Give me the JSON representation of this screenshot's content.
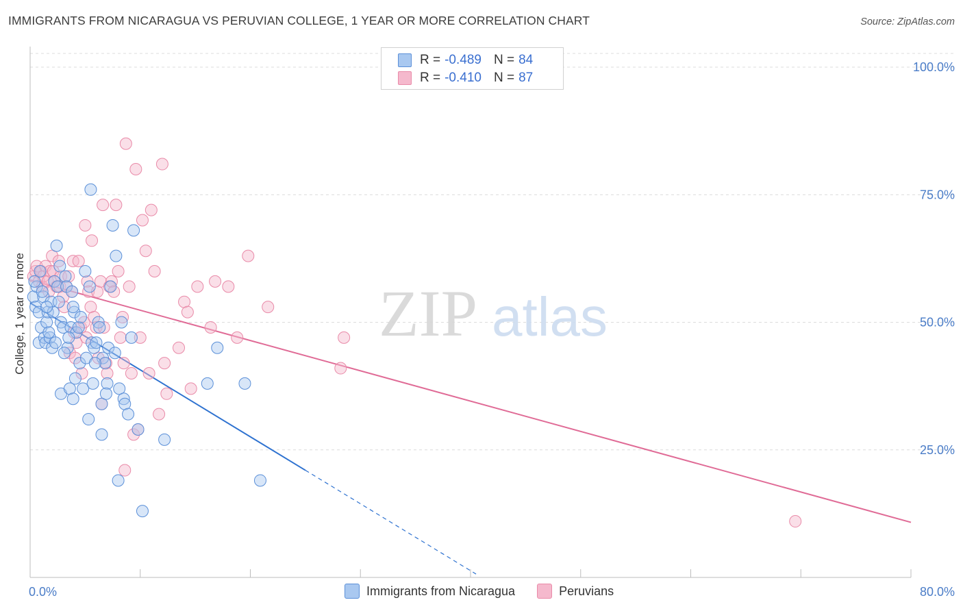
{
  "title": "IMMIGRANTS FROM NICARAGUA VS PERUVIAN COLLEGE, 1 YEAR OR MORE CORRELATION CHART",
  "source": "Source: ZipAtlas.com",
  "watermark": {
    "zip": "ZIP",
    "atlas": "atlas"
  },
  "legend": {
    "r_label": "R =",
    "n_label": "N =",
    "series": [
      {
        "r": "-0.489",
        "n": "84"
      },
      {
        "r": "-0.410",
        "n": "87"
      }
    ]
  },
  "bottom_legend": [
    "Immigrants from Nicaragua",
    "Peruvians"
  ],
  "colors": {
    "blue_fill": "#a9c8f0",
    "blue_stroke": "#5a8fd8",
    "blue_line": "#2e72d0",
    "pink_fill": "#f5b9cd",
    "pink_stroke": "#e98aa8",
    "pink_line": "#e06b96",
    "grid": "#dcdcdc",
    "tick_text": "#4a7cc7"
  },
  "chart_data": {
    "type": "scatter",
    "title": "IMMIGRANTS FROM NICARAGUA VS PERUVIAN COLLEGE, 1 YEAR OR MORE CORRELATION CHART",
    "xlabel": "",
    "ylabel": "College, 1 year or more",
    "xlim": [
      0,
      80
    ],
    "ylim": [
      0,
      105
    ],
    "x_tick_labels": [
      "0.0%",
      "80.0%"
    ],
    "y_ticks": [
      25,
      50,
      75,
      100
    ],
    "y_tick_labels": [
      "25.0%",
      "50.0%",
      "75.0%",
      "100.0%"
    ],
    "series": [
      {
        "name": "Immigrants from Nicaragua",
        "r": -0.489,
        "n": 84,
        "trend": {
          "x0": 0,
          "y0": 53.8,
          "x1": 25,
          "y1": 21.0,
          "dashed_to_x": 40.5
        },
        "points": [
          [
            0.3,
            55
          ],
          [
            0.5,
            53
          ],
          [
            0.6,
            57
          ],
          [
            0.8,
            52
          ],
          [
            0.8,
            46
          ],
          [
            1.0,
            49
          ],
          [
            1.2,
            55
          ],
          [
            1.3,
            47
          ],
          [
            1.4,
            46
          ],
          [
            1.5,
            50
          ],
          [
            1.6,
            52
          ],
          [
            1.8,
            47
          ],
          [
            1.9,
            54
          ],
          [
            2.0,
            45
          ],
          [
            2.2,
            58
          ],
          [
            2.4,
            65
          ],
          [
            2.5,
            57
          ],
          [
            2.6,
            54
          ],
          [
            2.8,
            50
          ],
          [
            2.8,
            36
          ],
          [
            3.0,
            49
          ],
          [
            3.2,
            59
          ],
          [
            3.3,
            57
          ],
          [
            3.4,
            45
          ],
          [
            3.6,
            37
          ],
          [
            3.7,
            49
          ],
          [
            3.8,
            56
          ],
          [
            3.9,
            35
          ],
          [
            4.0,
            52
          ],
          [
            4.2,
            48
          ],
          [
            4.4,
            49
          ],
          [
            4.5,
            42
          ],
          [
            4.8,
            37
          ],
          [
            5.0,
            60
          ],
          [
            5.1,
            43
          ],
          [
            5.3,
            31
          ],
          [
            5.4,
            57
          ],
          [
            5.5,
            76
          ],
          [
            5.6,
            46
          ],
          [
            5.7,
            38
          ],
          [
            5.8,
            45
          ],
          [
            6.0,
            46
          ],
          [
            6.2,
            50
          ],
          [
            6.3,
            49
          ],
          [
            6.5,
            34
          ],
          [
            6.5,
            28
          ],
          [
            6.6,
            43
          ],
          [
            6.8,
            42
          ],
          [
            7.0,
            38
          ],
          [
            7.1,
            45
          ],
          [
            7.3,
            57
          ],
          [
            7.5,
            69
          ],
          [
            7.8,
            63
          ],
          [
            8.1,
            37
          ],
          [
            8.3,
            50
          ],
          [
            8.5,
            35
          ],
          [
            8.6,
            34
          ],
          [
            8.9,
            32
          ],
          [
            9.2,
            47
          ],
          [
            9.4,
            68
          ],
          [
            9.8,
            29
          ],
          [
            10.2,
            13
          ],
          [
            12.2,
            27
          ],
          [
            16.1,
            38
          ],
          [
            17.0,
            45
          ],
          [
            19.5,
            38
          ],
          [
            20.9,
            19
          ],
          [
            8.0,
            19
          ],
          [
            1.1,
            56
          ],
          [
            2.1,
            52
          ],
          [
            3.5,
            47
          ],
          [
            4.6,
            51
          ],
          [
            5.9,
            42
          ],
          [
            7.7,
            44
          ],
          [
            0.9,
            60
          ],
          [
            2.7,
            61
          ],
          [
            1.7,
            48
          ],
          [
            3.1,
            44
          ],
          [
            4.1,
            39
          ],
          [
            6.9,
            36
          ],
          [
            0.4,
            58
          ],
          [
            1.5,
            53
          ],
          [
            2.3,
            46
          ],
          [
            3.9,
            53
          ]
        ]
      },
      {
        "name": "Peruvians",
        "r": -0.41,
        "n": 87,
        "trend": {
          "x0": 0,
          "y0": 58.3,
          "x1": 80,
          "y1": 10.8
        },
        "points": [
          [
            0.3,
            59
          ],
          [
            0.5,
            60
          ],
          [
            0.6,
            61
          ],
          [
            0.8,
            58
          ],
          [
            1.0,
            60
          ],
          [
            1.1,
            57
          ],
          [
            1.2,
            59
          ],
          [
            1.4,
            61
          ],
          [
            1.6,
            58
          ],
          [
            1.7,
            56
          ],
          [
            1.8,
            60
          ],
          [
            2.0,
            63
          ],
          [
            2.1,
            60
          ],
          [
            2.2,
            58
          ],
          [
            2.4,
            57
          ],
          [
            2.6,
            62
          ],
          [
            2.7,
            57
          ],
          [
            2.8,
            59
          ],
          [
            3.0,
            55
          ],
          [
            3.1,
            53
          ],
          [
            3.3,
            57
          ],
          [
            3.5,
            59
          ],
          [
            3.6,
            44
          ],
          [
            3.8,
            56
          ],
          [
            3.9,
            62
          ],
          [
            4.0,
            48
          ],
          [
            4.1,
            43
          ],
          [
            4.2,
            46
          ],
          [
            4.4,
            62
          ],
          [
            4.6,
            49
          ],
          [
            4.7,
            40
          ],
          [
            4.9,
            50
          ],
          [
            5.0,
            69
          ],
          [
            5.1,
            47
          ],
          [
            5.2,
            58
          ],
          [
            5.3,
            56
          ],
          [
            5.5,
            53
          ],
          [
            5.6,
            66
          ],
          [
            5.8,
            51
          ],
          [
            6.0,
            49
          ],
          [
            6.1,
            56
          ],
          [
            6.2,
            43
          ],
          [
            6.4,
            58
          ],
          [
            6.5,
            34
          ],
          [
            6.6,
            73
          ],
          [
            6.7,
            49
          ],
          [
            6.9,
            42
          ],
          [
            7.0,
            40
          ],
          [
            7.2,
            57
          ],
          [
            7.4,
            58
          ],
          [
            7.6,
            56
          ],
          [
            7.8,
            73
          ],
          [
            8.0,
            60
          ],
          [
            8.2,
            47
          ],
          [
            8.4,
            51
          ],
          [
            8.5,
            42
          ],
          [
            8.6,
            21
          ],
          [
            8.7,
            85
          ],
          [
            9.0,
            57
          ],
          [
            9.2,
            40
          ],
          [
            9.4,
            28
          ],
          [
            9.6,
            80
          ],
          [
            9.8,
            29
          ],
          [
            10.0,
            47
          ],
          [
            10.2,
            70
          ],
          [
            10.5,
            64
          ],
          [
            10.8,
            40
          ],
          [
            11.0,
            72
          ],
          [
            11.3,
            60
          ],
          [
            11.7,
            32
          ],
          [
            12.0,
            81
          ],
          [
            12.2,
            42
          ],
          [
            12.4,
            36
          ],
          [
            13.5,
            45
          ],
          [
            14.0,
            54
          ],
          [
            14.3,
            52
          ],
          [
            14.6,
            37
          ],
          [
            15.2,
            57
          ],
          [
            16.4,
            49
          ],
          [
            16.8,
            58
          ],
          [
            18.0,
            57
          ],
          [
            18.8,
            47
          ],
          [
            19.8,
            63
          ],
          [
            21.6,
            53
          ],
          [
            28.2,
            41
          ],
          [
            28.5,
            47
          ],
          [
            69.5,
            11
          ]
        ]
      }
    ]
  }
}
